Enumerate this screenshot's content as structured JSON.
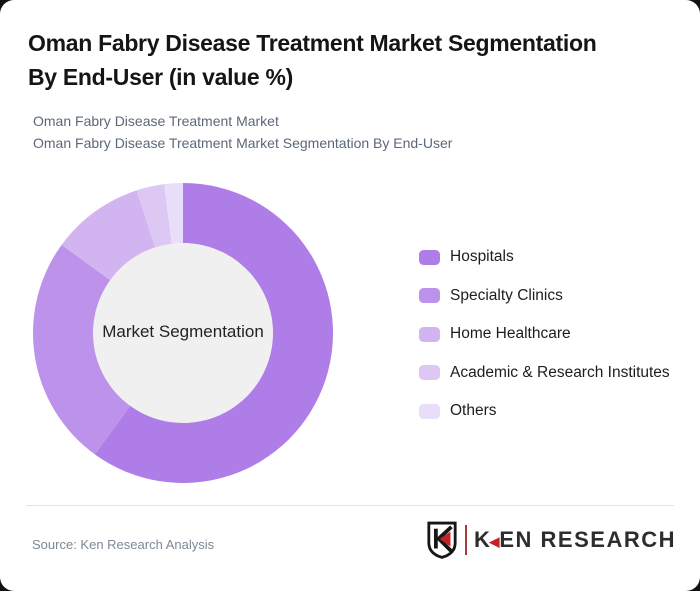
{
  "header": {
    "title_line1": "Oman Fabry Disease Treatment Market Segmentation",
    "title_line2": "By End-User (in value %)",
    "subtitle_line1": "Oman Fabry Disease Treatment Market",
    "subtitle_line2": "Oman Fabry Disease Treatment Market Segmentation By End-User"
  },
  "chart_data": {
    "type": "pie",
    "subtype": "donut",
    "title": "Oman Fabry Disease Treatment Market Segmentation By End-User (in value %)",
    "unit": "value %",
    "center_label": "Market Segmentation",
    "center_fill": "#f0f0f0",
    "start_angle_deg": 0,
    "inner_radius_ratio": 0.6,
    "legend_position": "right",
    "series": [
      {
        "name": "Hospitals",
        "value": 60,
        "color": "#af7de7"
      },
      {
        "name": "Specialty Clinics",
        "value": 25,
        "color": "#bd92ea"
      },
      {
        "name": "Home Healthcare",
        "value": 10,
        "color": "#d2b5f0"
      },
      {
        "name": "Academic & Research Institutes",
        "value": 3,
        "color": "#ddc8f4"
      },
      {
        "name": "Others",
        "value": 2,
        "color": "#e9def9"
      }
    ]
  },
  "footer": {
    "source": "Source: Ken Research Analysis",
    "logo": {
      "wordmark_k": "K",
      "wordmark_triangle": "◀",
      "wordmark_rest": "EN RESEARCH",
      "red": "#c42127",
      "dark": "#2d2d2d"
    }
  }
}
